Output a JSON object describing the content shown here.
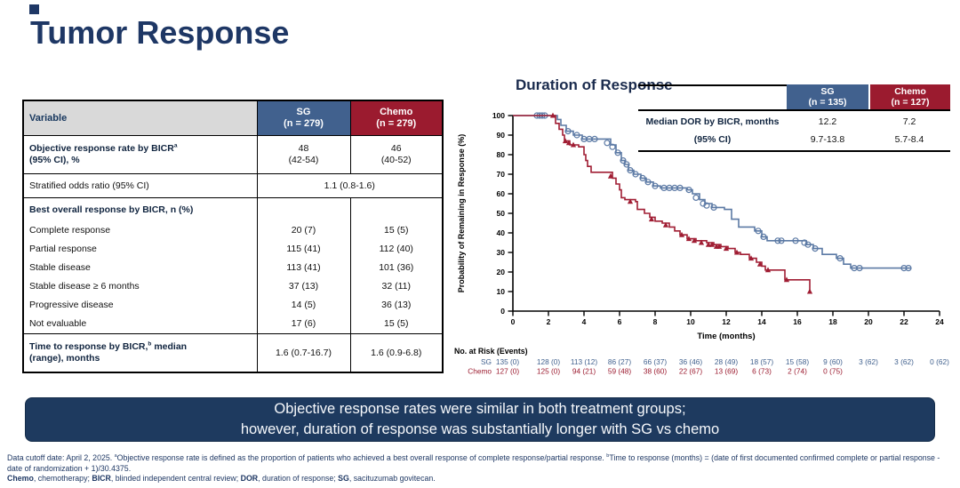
{
  "slide": {
    "title": "Tumor Response",
    "summary": {
      "line1": "Objective response rates were similar in both treatment groups;",
      "line2": "however, duration of response was substantially longer with SG vs chemo"
    },
    "footnote1": "Data cutoff date: April 2, 2025. ^{a}Objective response rate is defined as the proportion of patients who achieved a best overall response of complete response/partial response. ^{b}Time to response (months) = (date of first documented confirmed complete or partial response - date of randomization + 1)/30.4375.",
    "footnote2": "**Chemo**, chemotherapy; **BICR**, blinded independent central review; **DOR**, duration of response; **SG**, sacituzumab govitecan.",
    "colors": {
      "navy": "#1e3765",
      "sg_blue": "#41618e",
      "chemo_red": "#9b1b2f",
      "curve_blue": "#5b79a4",
      "curve_red": "#a01d33",
      "header_gray": "#d9d9d9",
      "summary_bg": "#1e3a5f"
    }
  },
  "response_table": {
    "col_headers": {
      "variable": "Variable",
      "sg_name": "SG",
      "sg_n": "(n = 279)",
      "chemo_name": "Chemo",
      "chemo_n": "(n = 279)"
    },
    "rows": [
      {
        "label_lines": [
          "Objective response rate by BICR^{a}",
          "(95% CI), %"
        ],
        "bold": true,
        "indent": 0,
        "size": "tall",
        "sg_lines": [
          "48",
          "(42-54)"
        ],
        "chemo_lines": [
          "46",
          "(40-52)"
        ],
        "group_start": true
      },
      {
        "label_lines": [
          "Stratified odds ratio (95% CI)"
        ],
        "bold": false,
        "indent": 1,
        "size": "med",
        "merged": "1.1 (0.8-1.6)",
        "group_start": true
      },
      {
        "label_lines": [
          "Best overall response by BICR, n (%)"
        ],
        "bold": true,
        "indent": 0,
        "size": "med",
        "sg_lines": [
          ""
        ],
        "chemo_lines": [
          ""
        ],
        "group_start": true
      },
      {
        "label_lines": [
          "Complete response"
        ],
        "indent": 1,
        "size": "sub",
        "sg_lines": [
          "20 (7)"
        ],
        "chemo_lines": [
          "15 (5)"
        ]
      },
      {
        "label_lines": [
          "Partial response"
        ],
        "indent": 1,
        "size": "sub",
        "sg_lines": [
          "115 (41)"
        ],
        "chemo_lines": [
          "112 (40)"
        ]
      },
      {
        "label_lines": [
          "Stable disease"
        ],
        "indent": 1,
        "size": "sub",
        "sg_lines": [
          "113 (41)"
        ],
        "chemo_lines": [
          "101 (36)"
        ]
      },
      {
        "label_lines": [
          "Stable disease ≥ 6 months"
        ],
        "indent": 2,
        "size": "sub",
        "sg_lines": [
          "37 (13)"
        ],
        "chemo_lines": [
          "32 (11)"
        ]
      },
      {
        "label_lines": [
          "Progressive disease"
        ],
        "indent": 1,
        "size": "sub",
        "sg_lines": [
          "14 (5)"
        ],
        "chemo_lines": [
          "36 (13)"
        ]
      },
      {
        "label_lines": [
          "Not evaluable"
        ],
        "indent": 1,
        "size": "sub",
        "sg_lines": [
          "17 (6)"
        ],
        "chemo_lines": [
          "15 (5)"
        ]
      },
      {
        "label_lines": [
          "Time to response by BICR,^{b} median",
          "(range), months"
        ],
        "bold": true,
        "indent": 0,
        "size": "tall",
        "sg_lines": [
          "1.6 (0.7-16.7)"
        ],
        "chemo_lines": [
          "1.6 (0.9-6.8)"
        ],
        "group_start": true
      }
    ]
  },
  "dor_table": {
    "sg_header": {
      "name": "SG",
      "n": "(n = 135)"
    },
    "chemo_header": {
      "name": "Chemo",
      "n": "(n = 127)"
    },
    "rows": [
      {
        "label": "Median DOR by BICR, months",
        "sg": "12.2",
        "chemo": "7.2"
      },
      {
        "label": "(95% CI)",
        "sg": "9.7-13.8",
        "chemo": "5.7-8.4"
      }
    ]
  },
  "chart_data": {
    "type": "line",
    "subtype": "kaplan-meier-step",
    "title": "Duration of Response",
    "xlabel": "Time (months)",
    "ylabel": "Probability of Remaining in Response (%)",
    "xlim": [
      0,
      24
    ],
    "ylim": [
      0,
      100
    ],
    "xtick_step": 2,
    "ytick_step": 10,
    "grid": false,
    "legend": "none",
    "series": [
      {
        "name": "SG",
        "color": "#5b79a4",
        "marker": "open-circle",
        "steps": [
          [
            0,
            100
          ],
          [
            2.4,
            100
          ],
          [
            2.5,
            98
          ],
          [
            2.7,
            95
          ],
          [
            3.0,
            92
          ],
          [
            3.4,
            90
          ],
          [
            3.9,
            88
          ],
          [
            5.2,
            88
          ],
          [
            5.5,
            85
          ],
          [
            5.8,
            81
          ],
          [
            6.1,
            77
          ],
          [
            6.3,
            75
          ],
          [
            6.5,
            72
          ],
          [
            6.8,
            70
          ],
          [
            7.2,
            68
          ],
          [
            7.5,
            66
          ],
          [
            7.9,
            64
          ],
          [
            8.3,
            63
          ],
          [
            9.5,
            63
          ],
          [
            9.8,
            62
          ],
          [
            10.1,
            60
          ],
          [
            10.5,
            57
          ],
          [
            10.8,
            55
          ],
          [
            11.2,
            53
          ],
          [
            11.9,
            52
          ],
          [
            12.3,
            47
          ],
          [
            12.7,
            43
          ],
          [
            13.6,
            41
          ],
          [
            14.0,
            38
          ],
          [
            14.3,
            36
          ],
          [
            16.3,
            36
          ],
          [
            16.5,
            34
          ],
          [
            16.9,
            32
          ],
          [
            17.4,
            29
          ],
          [
            18.2,
            27
          ],
          [
            18.6,
            24
          ],
          [
            19.0,
            22
          ],
          [
            22.4,
            22
          ]
        ],
        "censors": [
          [
            1.35,
            100
          ],
          [
            1.5,
            100
          ],
          [
            1.65,
            100
          ],
          [
            1.8,
            100
          ],
          [
            3.1,
            92
          ],
          [
            3.6,
            90
          ],
          [
            4.0,
            88
          ],
          [
            4.3,
            88
          ],
          [
            4.6,
            88
          ],
          [
            5.3,
            86
          ],
          [
            5.6,
            84
          ],
          [
            5.9,
            81
          ],
          [
            6.2,
            77
          ],
          [
            6.4,
            75
          ],
          [
            6.6,
            72
          ],
          [
            6.9,
            70
          ],
          [
            7.3,
            68
          ],
          [
            7.6,
            66
          ],
          [
            8.0,
            64
          ],
          [
            8.5,
            63
          ],
          [
            8.8,
            63
          ],
          [
            9.1,
            63
          ],
          [
            9.4,
            63
          ],
          [
            9.9,
            62
          ],
          [
            10.3,
            58
          ],
          [
            10.7,
            55
          ],
          [
            10.9,
            54
          ],
          [
            11.3,
            53
          ],
          [
            13.8,
            41
          ],
          [
            14.1,
            38
          ],
          [
            14.9,
            36
          ],
          [
            15.1,
            36
          ],
          [
            15.9,
            36
          ],
          [
            16.4,
            35
          ],
          [
            16.6,
            34
          ],
          [
            17.0,
            32
          ],
          [
            18.4,
            27
          ],
          [
            19.2,
            22
          ],
          [
            19.5,
            22
          ],
          [
            22.0,
            22
          ],
          [
            22.25,
            22
          ]
        ]
      },
      {
        "name": "Chemo",
        "color": "#a01d33",
        "marker": "filled-triangle",
        "steps": [
          [
            0,
            100
          ],
          [
            2.2,
            100
          ],
          [
            2.4,
            96
          ],
          [
            2.6,
            93
          ],
          [
            2.8,
            90
          ],
          [
            2.9,
            87
          ],
          [
            3.2,
            85
          ],
          [
            3.7,
            84
          ],
          [
            4.0,
            80
          ],
          [
            4.1,
            77
          ],
          [
            4.2,
            74
          ],
          [
            4.4,
            71
          ],
          [
            5.5,
            71
          ],
          [
            5.6,
            68
          ],
          [
            5.8,
            65
          ],
          [
            6.0,
            62
          ],
          [
            6.1,
            58
          ],
          [
            6.3,
            57
          ],
          [
            6.9,
            56
          ],
          [
            7.0,
            52
          ],
          [
            7.4,
            50
          ],
          [
            7.7,
            48
          ],
          [
            8.0,
            46
          ],
          [
            8.4,
            45
          ],
          [
            8.8,
            43
          ],
          [
            9.1,
            41
          ],
          [
            9.4,
            39
          ],
          [
            9.8,
            37
          ],
          [
            10.3,
            36
          ],
          [
            10.9,
            35
          ],
          [
            11.3,
            34
          ],
          [
            11.7,
            33
          ],
          [
            12.1,
            32
          ],
          [
            12.5,
            30
          ],
          [
            12.8,
            29
          ],
          [
            13.3,
            27
          ],
          [
            13.7,
            25
          ],
          [
            14.0,
            23
          ],
          [
            14.2,
            21
          ],
          [
            15.2,
            21
          ],
          [
            15.3,
            16
          ],
          [
            16.6,
            16
          ],
          [
            16.7,
            9
          ]
        ],
        "censors": [
          [
            2.25,
            100
          ],
          [
            2.95,
            87
          ],
          [
            3.15,
            86
          ],
          [
            3.4,
            85
          ],
          [
            5.5,
            69
          ],
          [
            6.6,
            56
          ],
          [
            7.8,
            47
          ],
          [
            8.6,
            44
          ],
          [
            9.5,
            39
          ],
          [
            9.9,
            37
          ],
          [
            10.2,
            36
          ],
          [
            10.6,
            35
          ],
          [
            11.0,
            34
          ],
          [
            11.2,
            34
          ],
          [
            11.45,
            33
          ],
          [
            11.6,
            33
          ],
          [
            12.0,
            32
          ],
          [
            12.6,
            30
          ],
          [
            13.4,
            27
          ],
          [
            13.9,
            24
          ],
          [
            14.35,
            21
          ],
          [
            15.4,
            16
          ],
          [
            16.7,
            10
          ]
        ]
      }
    ]
  },
  "risk_table": {
    "title": "No. at Risk (Events)",
    "timepoints": [
      0,
      2,
      4,
      6,
      8,
      10,
      12,
      14,
      16,
      18,
      20,
      22,
      24
    ],
    "rows": [
      {
        "name": "SG",
        "color": "#41618e",
        "values": [
          "135 (0)",
          "128 (0)",
          "113 (12)",
          "86 (27)",
          "66 (37)",
          "36 (46)",
          "28 (49)",
          "18 (57)",
          "15 (58)",
          "9 (60)",
          "3 (62)",
          "3 (62)",
          "0 (62)"
        ]
      },
      {
        "name": "Chemo",
        "color": "#9b1b2f",
        "values": [
          "127 (0)",
          "125 (0)",
          "94 (21)",
          "59 (48)",
          "38 (60)",
          "22 (67)",
          "13 (69)",
          "6 (73)",
          "2 (74)",
          "0 (75)"
        ]
      }
    ]
  }
}
